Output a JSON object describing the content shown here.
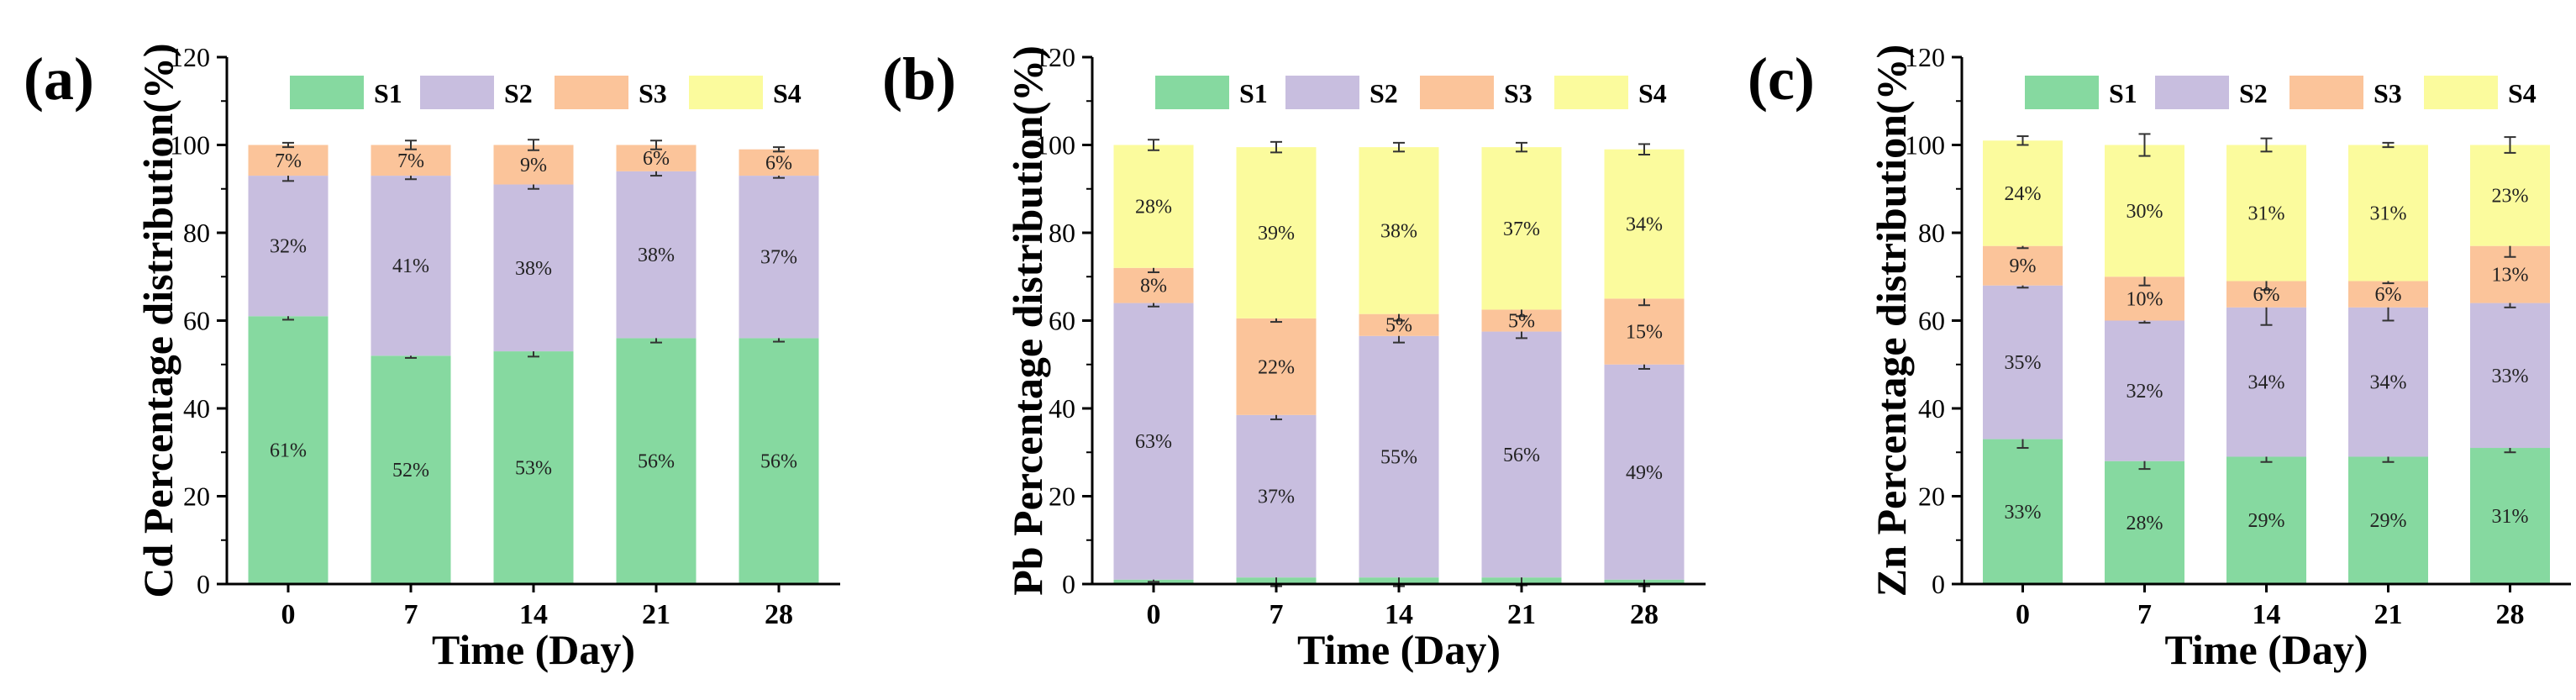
{
  "chart_data": [
    {
      "panel_label": "(a)",
      "type": "bar",
      "stacked": true,
      "title": "",
      "ylabel": "Cd Percentage distribution(%)",
      "xlabel": "Time (Day)",
      "categories": [
        "0",
        "7",
        "14",
        "21",
        "28"
      ],
      "ylim": [
        0,
        120
      ],
      "yticks": [
        "0",
        "20",
        "40",
        "60",
        "80",
        "100",
        "120"
      ],
      "legend": [
        "S1",
        "S2",
        "S3",
        "S4"
      ],
      "legend_position": "top",
      "series": [
        {
          "name": "S1",
          "values": [
            61,
            52,
            53,
            56,
            56
          ],
          "errors": [
            0.8,
            0.5,
            1.2,
            1.0,
            0.8
          ],
          "labels": [
            "61%",
            "52%",
            "53%",
            "56%",
            "56%"
          ]
        },
        {
          "name": "S2",
          "values": [
            32,
            41,
            38,
            38,
            37
          ],
          "errors": [
            1.2,
            0.8,
            1.0,
            1.0,
            0.5
          ],
          "labels": [
            "32%",
            "41%",
            "38%",
            "38%",
            "37%"
          ]
        },
        {
          "name": "S3",
          "values": [
            7,
            7,
            9,
            6,
            6
          ],
          "errors": [
            0.5,
            1.0,
            1.2,
            1.0,
            0.5
          ],
          "labels": [
            "7%",
            "7%",
            "9%",
            "6%",
            "6%"
          ]
        },
        {
          "name": "S4",
          "values": [
            0,
            0,
            0,
            0,
            0
          ],
          "errors": [
            0,
            0,
            0,
            0,
            0
          ],
          "labels": [
            "",
            "",
            "",
            "",
            ""
          ]
        }
      ]
    },
    {
      "panel_label": "(b)",
      "type": "bar",
      "stacked": true,
      "title": "",
      "ylabel": "Pb Percentage distribution(%)",
      "xlabel": "Time (Day)",
      "categories": [
        "0",
        "7",
        "14",
        "21",
        "28"
      ],
      "ylim": [
        0,
        120
      ],
      "yticks": [
        "0",
        "20",
        "40",
        "60",
        "80",
        "100",
        "120"
      ],
      "legend": [
        "S1",
        "S2",
        "S3",
        "S4"
      ],
      "legend_position": "top",
      "series": [
        {
          "name": "S1",
          "values": [
            1,
            1.5,
            1.5,
            1.5,
            1
          ],
          "errors": [
            0.5,
            2,
            2,
            1.8,
            1.5
          ],
          "labels": [
            "",
            "",
            "",
            "",
            ""
          ]
        },
        {
          "name": "S2",
          "values": [
            63,
            37,
            55,
            56,
            49
          ],
          "errors": [
            0.8,
            1.0,
            1.5,
            1.5,
            1.0
          ],
          "labels": [
            "63%",
            "37%",
            "55%",
            "56%",
            "49%"
          ]
        },
        {
          "name": "S3",
          "values": [
            8,
            22,
            5,
            5,
            15
          ],
          "errors": [
            1.0,
            0.8,
            1.5,
            1.5,
            1.5
          ],
          "labels": [
            "8%",
            "22%",
            "5%",
            "5%",
            "15%"
          ]
        },
        {
          "name": "S4",
          "values": [
            28,
            39,
            38,
            37,
            34
          ],
          "errors": [
            1.2,
            1.2,
            1.0,
            1.0,
            1.2
          ],
          "labels": [
            "28%",
            "39%",
            "38%",
            "37%",
            "34%"
          ]
        }
      ]
    },
    {
      "panel_label": "(c)",
      "type": "bar",
      "stacked": true,
      "title": "",
      "ylabel": "Zn Percentage distribution(%)",
      "xlabel": "Time (Day)",
      "categories": [
        "0",
        "7",
        "14",
        "21",
        "28"
      ],
      "ylim": [
        0,
        120
      ],
      "yticks": [
        "0",
        "20",
        "40",
        "60",
        "80",
        "100",
        "120"
      ],
      "legend": [
        "S1",
        "S2",
        "S3",
        "S4"
      ],
      "legend_position": "top",
      "series": [
        {
          "name": "S1",
          "values": [
            33,
            28,
            29,
            29,
            31
          ],
          "errors": [
            2.0,
            1.8,
            1.2,
            1.2,
            1.0
          ],
          "labels": [
            "33%",
            "28%",
            "29%",
            "29%",
            "31%"
          ]
        },
        {
          "name": "S2",
          "values": [
            35,
            32,
            34,
            34,
            33
          ],
          "errors": [
            0.5,
            0.5,
            4.0,
            3.0,
            1.0
          ],
          "labels": [
            "35%",
            "32%",
            "34%",
            "34%",
            "33%"
          ]
        },
        {
          "name": "S3",
          "values": [
            9,
            10,
            6,
            6,
            13
          ],
          "errors": [
            0.5,
            2.0,
            2.0,
            0.5,
            2.5
          ],
          "labels": [
            "9%",
            "10%",
            "6%",
            "6%",
            "13%"
          ]
        },
        {
          "name": "S4",
          "values": [
            24,
            30,
            31,
            31,
            23
          ],
          "errors": [
            1.0,
            2.5,
            1.5,
            0.5,
            1.8
          ],
          "labels": [
            "24%",
            "30%",
            "31%",
            "31%",
            "23%"
          ]
        }
      ]
    }
  ],
  "colors": {
    "S1": "#86d9a0",
    "S2": "#c8bedf",
    "S3": "#fbc49a",
    "S4": "#fbfb9d",
    "axis": "#000000"
  }
}
